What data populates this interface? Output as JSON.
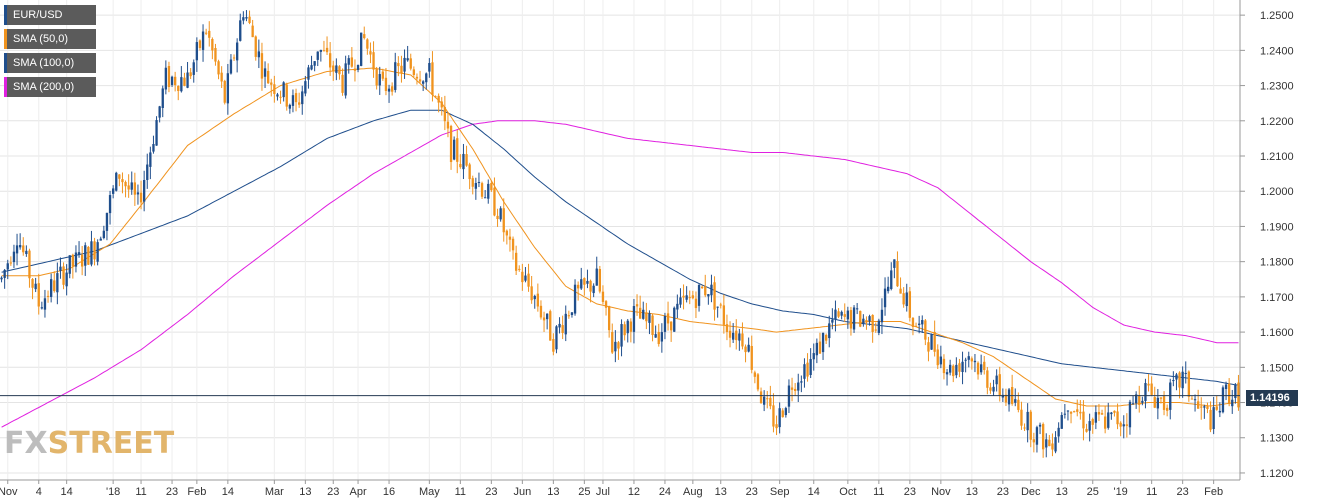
{
  "chart_data": {
    "type": "candlestick",
    "title": "EUR/USD",
    "current_price": "1.14196",
    "ylim": [
      1.12,
      1.255
    ],
    "y_ticks": [
      "1.2500",
      "1.2400",
      "1.2300",
      "1.2200",
      "1.2100",
      "1.2000",
      "1.1900",
      "1.1800",
      "1.1700",
      "1.1600",
      "1.1500",
      "1.1400",
      "1.1300",
      "1.1200"
    ],
    "x_ticks": [
      "Nov",
      "4",
      "14",
      "'18",
      "11",
      "23",
      "Feb",
      "14",
      "Mar",
      "13",
      "23",
      "Apr",
      "16",
      "May",
      "11",
      "23",
      "Jun",
      "13",
      "25",
      "Jul",
      "12",
      "24",
      "Aug",
      "13",
      "23",
      "Sep",
      "14",
      "Oct",
      "11",
      "23",
      "Nov",
      "13",
      "23",
      "Dec",
      "13",
      "25",
      "'19",
      "11",
      "23",
      "Feb"
    ],
    "legend": [
      {
        "label": "EUR/USD",
        "color": "#1f4e8c"
      },
      {
        "label": "SMA (50,0)",
        "color": "#f0931e"
      },
      {
        "label": "SMA (100,0)",
        "color": "#1f4e8c"
      },
      {
        "label": "SMA (200,0)",
        "color": "#e020e0"
      }
    ],
    "series": [
      {
        "name": "EUR/USD",
        "type": "candles",
        "anchors": [
          [
            0,
            1.175
          ],
          [
            5,
            1.188
          ],
          [
            12,
            1.168
          ],
          [
            20,
            1.177
          ],
          [
            30,
            1.184
          ],
          [
            38,
            1.205
          ],
          [
            44,
            1.196
          ],
          [
            53,
            1.232
          ],
          [
            60,
            1.232
          ],
          [
            66,
            1.246
          ],
          [
            72,
            1.226
          ],
          [
            78,
            1.252
          ],
          [
            85,
            1.233
          ],
          [
            95,
            1.224
          ],
          [
            102,
            1.241
          ],
          [
            110,
            1.231
          ],
          [
            117,
            1.243
          ],
          [
            123,
            1.229
          ],
          [
            130,
            1.236
          ],
          [
            138,
            1.233
          ],
          [
            145,
            1.212
          ],
          [
            152,
            1.205
          ],
          [
            160,
            1.195
          ],
          [
            165,
            1.18
          ],
          [
            172,
            1.17
          ],
          [
            178,
            1.158
          ],
          [
            185,
            1.17
          ],
          [
            192,
            1.175
          ],
          [
            197,
            1.156
          ],
          [
            204,
            1.165
          ],
          [
            212,
            1.16
          ],
          [
            220,
            1.168
          ],
          [
            228,
            1.173
          ],
          [
            234,
            1.162
          ],
          [
            240,
            1.158
          ],
          [
            246,
            1.139
          ],
          [
            250,
            1.134
          ],
          [
            255,
            1.146
          ],
          [
            262,
            1.153
          ],
          [
            268,
            1.163
          ],
          [
            276,
            1.164
          ],
          [
            282,
            1.163
          ],
          [
            288,
            1.178
          ],
          [
            294,
            1.163
          ],
          [
            300,
            1.157
          ],
          [
            306,
            1.149
          ],
          [
            312,
            1.154
          ],
          [
            318,
            1.147
          ],
          [
            326,
            1.14
          ],
          [
            332,
            1.133
          ],
          [
            338,
            1.128
          ],
          [
            344,
            1.141
          ],
          [
            350,
            1.134
          ],
          [
            356,
            1.135
          ],
          [
            362,
            1.135
          ],
          [
            368,
            1.144
          ],
          [
            375,
            1.14
          ],
          [
            381,
            1.147
          ],
          [
            386,
            1.138
          ],
          [
            391,
            1.135
          ],
          [
            395,
            1.143
          ],
          [
            398,
            1.142
          ]
        ]
      },
      {
        "name": "SMA (50,0)",
        "values": [
          [
            0,
            1.176
          ],
          [
            12,
            1.176
          ],
          [
            22,
            1.178
          ],
          [
            35,
            1.185
          ],
          [
            45,
            1.196
          ],
          [
            60,
            1.213
          ],
          [
            75,
            1.222
          ],
          [
            90,
            1.23
          ],
          [
            105,
            1.234
          ],
          [
            120,
            1.235
          ],
          [
            132,
            1.233
          ],
          [
            142,
            1.225
          ],
          [
            152,
            1.212
          ],
          [
            162,
            1.197
          ],
          [
            172,
            1.184
          ],
          [
            182,
            1.173
          ],
          [
            192,
            1.168
          ],
          [
            202,
            1.166
          ],
          [
            212,
            1.165
          ],
          [
            222,
            1.163
          ],
          [
            232,
            1.162
          ],
          [
            242,
            1.161
          ],
          [
            250,
            1.16
          ],
          [
            260,
            1.161
          ],
          [
            270,
            1.162
          ],
          [
            280,
            1.163
          ],
          [
            290,
            1.163
          ],
          [
            300,
            1.16
          ],
          [
            310,
            1.157
          ],
          [
            320,
            1.153
          ],
          [
            330,
            1.147
          ],
          [
            340,
            1.141
          ],
          [
            350,
            1.139
          ],
          [
            360,
            1.139
          ],
          [
            370,
            1.14
          ],
          [
            380,
            1.14
          ],
          [
            390,
            1.139
          ],
          [
            398,
            1.14
          ]
        ]
      },
      {
        "name": "SMA (100,0)",
        "values": [
          [
            0,
            1.177
          ],
          [
            15,
            1.18
          ],
          [
            30,
            1.183
          ],
          [
            45,
            1.188
          ],
          [
            60,
            1.193
          ],
          [
            75,
            1.2
          ],
          [
            90,
            1.207
          ],
          [
            105,
            1.215
          ],
          [
            120,
            1.22
          ],
          [
            132,
            1.223
          ],
          [
            142,
            1.223
          ],
          [
            152,
            1.219
          ],
          [
            162,
            1.212
          ],
          [
            172,
            1.204
          ],
          [
            182,
            1.197
          ],
          [
            192,
            1.191
          ],
          [
            202,
            1.185
          ],
          [
            212,
            1.18
          ],
          [
            222,
            1.175
          ],
          [
            232,
            1.171
          ],
          [
            242,
            1.168
          ],
          [
            252,
            1.166
          ],
          [
            262,
            1.165
          ],
          [
            272,
            1.163
          ],
          [
            282,
            1.162
          ],
          [
            292,
            1.161
          ],
          [
            302,
            1.159
          ],
          [
            312,
            1.157
          ],
          [
            322,
            1.155
          ],
          [
            332,
            1.153
          ],
          [
            342,
            1.151
          ],
          [
            352,
            1.15
          ],
          [
            362,
            1.149
          ],
          [
            372,
            1.148
          ],
          [
            382,
            1.147
          ],
          [
            392,
            1.146
          ],
          [
            398,
            1.145
          ]
        ]
      },
      {
        "name": "SMA (200,0)",
        "values": [
          [
            0,
            1.133
          ],
          [
            15,
            1.14
          ],
          [
            30,
            1.147
          ],
          [
            45,
            1.155
          ],
          [
            60,
            1.165
          ],
          [
            75,
            1.176
          ],
          [
            90,
            1.186
          ],
          [
            105,
            1.196
          ],
          [
            120,
            1.205
          ],
          [
            132,
            1.211
          ],
          [
            142,
            1.216
          ],
          [
            152,
            1.219
          ],
          [
            160,
            1.22
          ],
          [
            172,
            1.22
          ],
          [
            182,
            1.219
          ],
          [
            192,
            1.217
          ],
          [
            202,
            1.215
          ],
          [
            212,
            1.214
          ],
          [
            222,
            1.213
          ],
          [
            232,
            1.212
          ],
          [
            242,
            1.211
          ],
          [
            252,
            1.211
          ],
          [
            262,
            1.21
          ],
          [
            272,
            1.209
          ],
          [
            282,
            1.207
          ],
          [
            292,
            1.205
          ],
          [
            302,
            1.201
          ],
          [
            312,
            1.194
          ],
          [
            322,
            1.187
          ],
          [
            332,
            1.18
          ],
          [
            342,
            1.174
          ],
          [
            352,
            1.167
          ],
          [
            362,
            1.162
          ],
          [
            372,
            1.16
          ],
          [
            382,
            1.159
          ],
          [
            392,
            1.157
          ],
          [
            398,
            1.157
          ]
        ]
      }
    ]
  },
  "brand": {
    "part1": "FX",
    "part2": "STREET"
  }
}
